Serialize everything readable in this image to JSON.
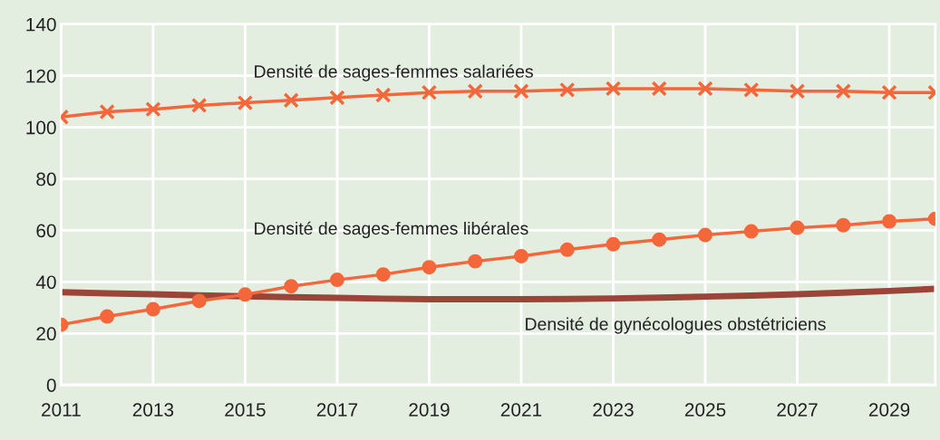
{
  "chart_data": {
    "type": "line",
    "x": [
      2011,
      2012,
      2013,
      2014,
      2015,
      2016,
      2017,
      2018,
      2019,
      2020,
      2021,
      2022,
      2023,
      2024,
      2025,
      2026,
      2027,
      2028,
      2029,
      2030
    ],
    "series": [
      {
        "name": "Densité de sages-femmes salariées",
        "color": "#f4673a",
        "marker": "cross",
        "values": [
          104,
          106,
          107,
          108.5,
          109.5,
          110.5,
          111.5,
          112.5,
          113.5,
          114,
          114,
          114.5,
          115,
          115,
          115,
          114.5,
          114,
          114,
          113.5,
          113.5
        ]
      },
      {
        "name": "Densité de sages-femmes libérales",
        "color": "#f4673a",
        "marker": "circle",
        "values": [
          23.4,
          26.6,
          29.4,
          32.6,
          35.1,
          38.3,
          40.8,
          42.9,
          45.7,
          48,
          50,
          52.5,
          54.6,
          56.4,
          58.2,
          59.6,
          61,
          62,
          63.5,
          64.5
        ]
      },
      {
        "name": "Densité de gynécologues obstétriciens",
        "color": "#9b4438",
        "marker": "none",
        "values": [
          36,
          35.6,
          35.2,
          34.8,
          34.4,
          34.1,
          33.8,
          33.5,
          33.3,
          33.3,
          33.3,
          33.4,
          33.6,
          33.9,
          34.3,
          34.7,
          35.2,
          35.8,
          36.5,
          37.3
        ]
      }
    ],
    "xlim": [
      2011,
      2030
    ],
    "xticks": [
      2011,
      2013,
      2015,
      2017,
      2019,
      2021,
      2023,
      2025,
      2027,
      2029
    ],
    "ylim": [
      0,
      140
    ],
    "yticks": [
      0,
      20,
      40,
      60,
      80,
      100,
      120,
      140
    ],
    "grid": true,
    "legend": false
  }
}
